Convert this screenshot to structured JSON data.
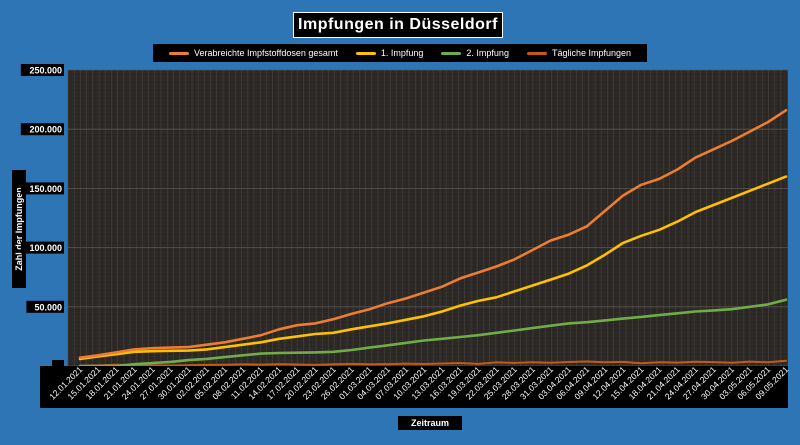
{
  "chart_data": {
    "type": "line",
    "title": "Impfungen in Düsseldorf",
    "xlabel": "Zeitraum",
    "ylabel": "Zahl der Impfungen",
    "ylim": [
      0,
      250000
    ],
    "yticks": [
      0,
      50000,
      100000,
      150000,
      200000,
      250000
    ],
    "ytick_labels": [
      "-",
      "50.000",
      "100.000",
      "150.000",
      "200.000",
      "250.000"
    ],
    "grid": true,
    "legend_position": "top",
    "x_tick_labels": [
      "12.01.2021",
      "15.01.2021",
      "18.01.2021",
      "21.01.2021",
      "24.01.2021",
      "27.01.2021",
      "30.01.2021",
      "02.02.2021",
      "05.02.2021",
      "08.02.2021",
      "11.02.2021",
      "14.02.2021",
      "17.02.2021",
      "20.02.2021",
      "23.02.2021",
      "26.02.2021",
      "01.03.2021",
      "04.03.2021",
      "07.03.2021",
      "10.03.2021",
      "13.03.2021",
      "16.03.2021",
      "19.03.2021",
      "22.03.2021",
      "25.03.2021",
      "28.03.2021",
      "31.03.2021",
      "03.04.2021",
      "06.04.2021",
      "09.04.2021",
      "12.04.2021",
      "15.04.2021",
      "18.04.2021",
      "21.04.2021",
      "24.04.2021",
      "27.04.2021",
      "30.04.2021",
      "03.05.2021",
      "06.05.2021",
      "09.05.2021"
    ],
    "series": [
      {
        "name": "Verabreichte Impfstoffdosen gesamt",
        "color": "#ED7D31",
        "values": [
          7000,
          9000,
          11500,
          14000,
          15000,
          15500,
          16000,
          18000,
          20000,
          23000,
          26000,
          31000,
          34500,
          36000,
          39500,
          44000,
          48000,
          53000,
          57000,
          62000,
          67000,
          74000,
          79000,
          84000,
          90000,
          98000,
          106000,
          111000,
          118000,
          131000,
          144000,
          153000,
          158000,
          166000,
          176000,
          183000,
          190000,
          198000,
          206000,
          216000
        ]
      },
      {
        "name": "1. Impfung",
        "color": "#FFC000",
        "values": [
          6000,
          8000,
          10000,
          12000,
          12500,
          12800,
          13000,
          14000,
          16000,
          18000,
          20000,
          23000,
          25000,
          27000,
          28000,
          31000,
          33500,
          36000,
          39000,
          42000,
          46000,
          51000,
          55000,
          58000,
          63000,
          68000,
          73000,
          78000,
          85000,
          94000,
          104000,
          110000,
          115000,
          122000,
          130000,
          136000,
          142000,
          148000,
          154000,
          160000
        ]
      },
      {
        "name": "2. Impfung",
        "color": "#70AD47",
        "values": [
          0,
          0,
          0,
          1500,
          2500,
          3500,
          5000,
          6000,
          7500,
          9000,
          10500,
          11000,
          11200,
          11500,
          12000,
          13500,
          15500,
          17500,
          19500,
          21500,
          23000,
          24500,
          26000,
          28000,
          30000,
          32000,
          34000,
          36000,
          37000,
          38500,
          40000,
          41500,
          43000,
          44500,
          46000,
          47000,
          48000,
          50000,
          52000,
          56000
        ]
      },
      {
        "name": "Tägliche Impfungen",
        "color": "#C55A11",
        "values": [
          200,
          500,
          1000,
          800,
          600,
          400,
          700,
          900,
          1100,
          1400,
          1200,
          1600,
          1300,
          900,
          1500,
          1800,
          1400,
          1600,
          2000,
          1700,
          2100,
          2500,
          1800,
          3000,
          2600,
          3200,
          2800,
          3400,
          3800,
          3100,
          3500,
          2400,
          3200,
          2900,
          3600,
          3300,
          2800,
          3700,
          3100,
          4500
        ]
      }
    ]
  }
}
